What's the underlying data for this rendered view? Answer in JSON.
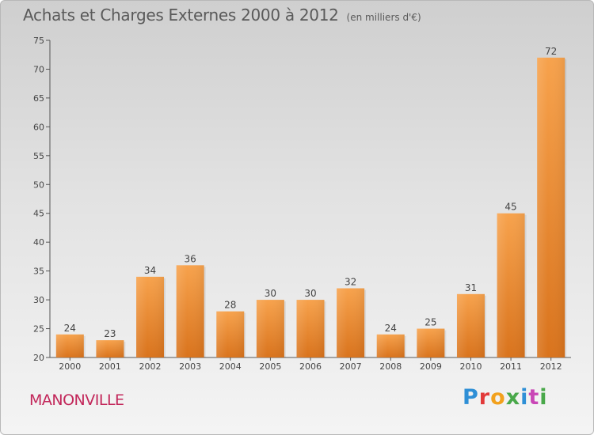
{
  "header": {
    "title": "Achats et Charges Externes 2000 à 2012",
    "unit": "(en milliers d'€)"
  },
  "footer": {
    "commune": "MANONVILLE",
    "brand": "Proxiti",
    "brand_colors": [
      "#2e8fd6",
      "#e23a3a",
      "#f2a11d",
      "#49a84a",
      "#2e8fd6",
      "#c946b6",
      "#49a84a"
    ]
  },
  "chart_data": {
    "type": "bar",
    "title": "Achats et Charges Externes 2000 à 2012",
    "unit": "(en milliers d'€)",
    "categories": [
      "2000",
      "2001",
      "2002",
      "2003",
      "2004",
      "2005",
      "2006",
      "2007",
      "2008",
      "2009",
      "2010",
      "2011",
      "2012"
    ],
    "values": [
      24,
      23,
      34,
      36,
      28,
      30,
      30,
      32,
      24,
      25,
      31,
      45,
      72
    ],
    "ylim": [
      20,
      75
    ],
    "yticks": [
      20,
      25,
      30,
      35,
      40,
      45,
      50,
      55,
      60,
      65,
      70,
      75
    ],
    "grid": false,
    "data_labels": true,
    "bar_color": "#f0922e"
  }
}
